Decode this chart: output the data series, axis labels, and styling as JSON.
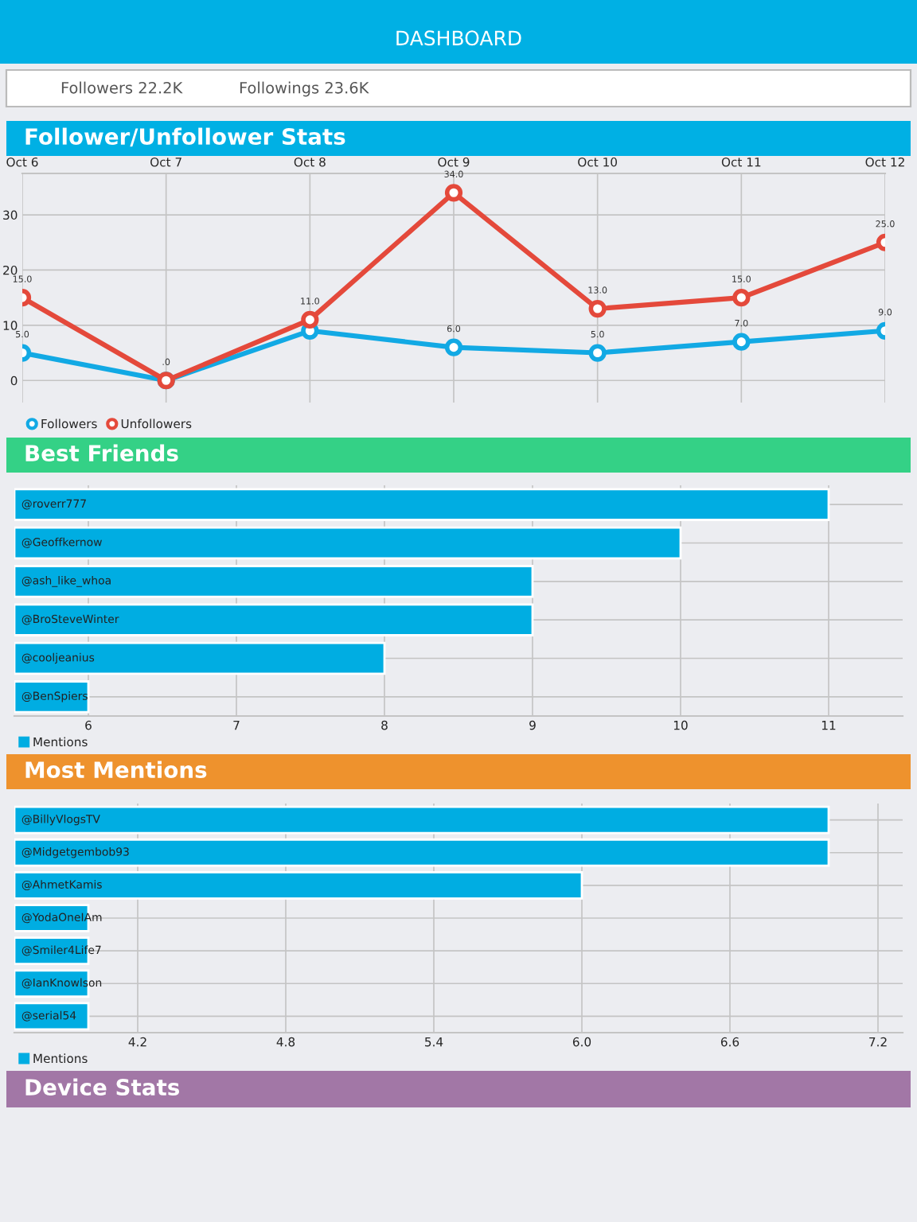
{
  "chart_data": [
    {
      "type": "other",
      "title": "DASHBOARD",
      "annotations": [
        "Followers 22.2K",
        "Followings 23.6K"
      ]
    },
    {
      "type": "line",
      "title": "Follower/Unfollower Stats",
      "categories": [
        "Oct 6",
        "Oct 7",
        "Oct 8",
        "Oct 9",
        "Oct 10",
        "Oct 11",
        "Oct 12"
      ],
      "series": [
        {
          "name": "Followers",
          "color": "#12a9e4",
          "values": [
            5,
            0,
            9,
            6,
            5,
            7,
            9
          ],
          "value_labels": [
            "5.0",
            null,
            null,
            "6.0",
            "5.0",
            "7.0",
            "9.0"
          ]
        },
        {
          "name": "Unfollowers",
          "color": "#e4493b",
          "values": [
            15,
            0,
            11,
            34,
            13,
            15,
            25
          ],
          "value_labels": [
            "15.0",
            ".0",
            "11.0",
            "34.0",
            "13.0",
            "15.0",
            "25.0"
          ]
        }
      ],
      "ylim": [
        -4,
        37.5
      ],
      "yticks": [
        0,
        10,
        20,
        30
      ],
      "grid": true,
      "legend": "bottom left",
      "marker": "circle",
      "line_style": "solid"
    },
    {
      "type": "bar",
      "orientation": "horizontal",
      "title": "Best Friends",
      "categories": [
        "@roverr777",
        "@Geoffkernow",
        "@ash_like_whoa",
        "@BroSteveWinter",
        "@cooljeanius",
        "@BenSpiers"
      ],
      "series": [
        {
          "name": "Mentions",
          "color": "#00ade2",
          "values": [
            11,
            10,
            9,
            9,
            8,
            6
          ]
        }
      ],
      "xlim": [
        5.5,
        11.5
      ],
      "xticks": [
        6,
        7,
        8,
        9,
        10,
        11
      ],
      "grid": true,
      "legend": "bottom left"
    },
    {
      "type": "bar",
      "orientation": "horizontal",
      "title": "Most Mentions",
      "categories": [
        "@BillyVlogsTV",
        "@Midgetgembob93",
        "@AhmetKamis",
        "@YodaOneIAm",
        "@Smiler4Life7",
        "@IanKnowlson",
        "@serial54"
      ],
      "series": [
        {
          "name": "Mentions",
          "color": "#00ade2",
          "values": [
            7,
            7,
            6,
            4,
            4,
            4,
            4
          ]
        }
      ],
      "xlim": [
        3.7,
        7.3
      ],
      "xticks": [
        {
          "value": 4.2,
          "label": "4.2"
        },
        {
          "value": 4.8,
          "label": "4.8"
        },
        {
          "value": 5.4,
          "label": "5.4"
        },
        {
          "value": 6.0,
          "label": "6.0"
        },
        {
          "value": 6.6,
          "label": "6.6"
        },
        {
          "value": 7.2,
          "label": "7.2"
        }
      ],
      "grid": true,
      "legend": "bottom left"
    },
    {
      "type": "other",
      "title": "Device Stats"
    }
  ]
}
